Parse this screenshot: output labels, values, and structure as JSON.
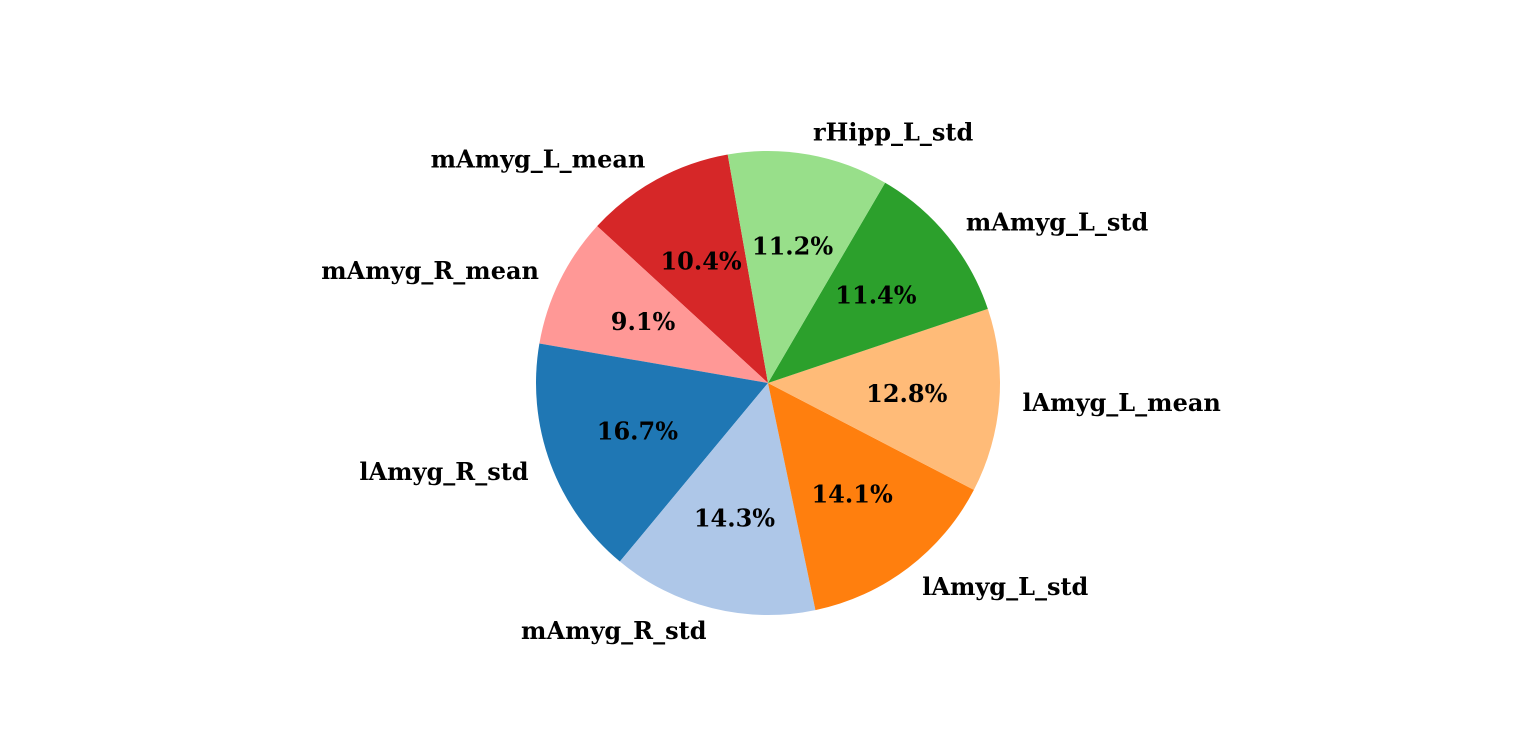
{
  "chart_data": {
    "type": "pie",
    "title": "",
    "start_angle_deg": 100,
    "direction": "counterclockwise",
    "slices": [
      {
        "label": "mAmyg_L_mean",
        "value": 10.4,
        "pct_label": "10.4%",
        "color": "#d62728"
      },
      {
        "label": "mAmyg_R_mean",
        "value": 9.1,
        "pct_label": "9.1%",
        "color": "#ff9896"
      },
      {
        "label": "lAmyg_R_std",
        "value": 16.7,
        "pct_label": "16.7%",
        "color": "#1f77b4"
      },
      {
        "label": "mAmyg_R_std",
        "value": 14.3,
        "pct_label": "14.3%",
        "color": "#aec7e8"
      },
      {
        "label": "lAmyg_L_std",
        "value": 14.1,
        "pct_label": "14.1%",
        "color": "#ff7f0e"
      },
      {
        "label": "lAmyg_L_mean",
        "value": 12.8,
        "pct_label": "12.8%",
        "color": "#ffbb78"
      },
      {
        "label": "mAmyg_L_std",
        "value": 11.4,
        "pct_label": "11.4%",
        "color": "#2ca02c"
      },
      {
        "label": "rHipp_L_std",
        "value": 11.2,
        "pct_label": "11.2%",
        "color": "#98df8a"
      }
    ]
  }
}
